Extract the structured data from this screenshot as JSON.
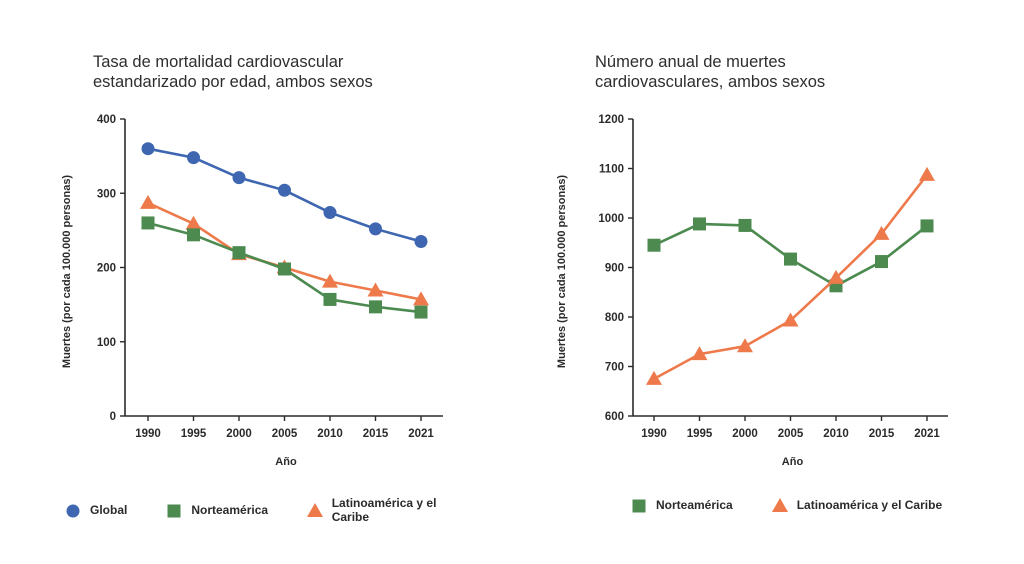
{
  "colors": {
    "global": "#3e66b1",
    "norteamerica": "#4c8a50",
    "latinoamerica": "#ee7a4c",
    "axis": "#2b2b2b"
  },
  "chart_data": [
    {
      "type": "line",
      "title_lines": [
        "Tasa de mortalidad cardiovascular",
        "estandarizado por edad, ambos sexos"
      ],
      "title": "Tasa de mortalidad cardiovascular estandarizado por edad, ambos sexos",
      "xlabel": "Año",
      "ylabel": "Muertes (por cada 100.000 personas)",
      "categories": [
        "1990",
        "1995",
        "2000",
        "2005",
        "2010",
        "2015",
        "2021"
      ],
      "ylim": [
        0,
        400
      ],
      "yticks": [
        0,
        100,
        200,
        300,
        400
      ],
      "series": [
        {
          "name": "Global",
          "key": "global",
          "marker": "circle",
          "values": [
            360,
            348,
            321,
            304,
            274,
            252,
            235
          ]
        },
        {
          "name": "Latinoamérica y el Caribe",
          "key": "latinoamerica",
          "marker": "triangle",
          "values": [
            287,
            259,
            218,
            200,
            181,
            169,
            157
          ]
        },
        {
          "name": "Norteamérica",
          "key": "norteamerica",
          "marker": "square",
          "values": [
            260,
            244,
            220,
            198,
            157,
            147,
            140
          ]
        }
      ],
      "legend": [
        {
          "name": "Global",
          "key": "global",
          "marker": "circle"
        },
        {
          "name": "Norteamérica",
          "key": "norteamerica",
          "marker": "square"
        },
        {
          "name": "Latinoamérica y el Caribe",
          "key": "latinoamerica",
          "marker": "triangle"
        }
      ]
    },
    {
      "type": "line",
      "title_lines": [
        "Número anual de muertes",
        "cardiovasculares, ambos sexos"
      ],
      "title": "Número anual de muertes cardiovasculares, ambos sexos",
      "xlabel": "Año",
      "ylabel": "Muertes (por cada 100.000 personas)",
      "categories": [
        "1990",
        "1995",
        "2000",
        "2005",
        "2010",
        "2015",
        "2021"
      ],
      "ylim": [
        600,
        1200
      ],
      "yticks": [
        600,
        700,
        800,
        900,
        1000,
        1100,
        1200
      ],
      "series": [
        {
          "name": "Norteamérica",
          "key": "norteamerica",
          "marker": "square",
          "values": [
            945,
            988,
            985,
            917,
            863,
            912,
            984
          ]
        },
        {
          "name": "Latinoamérica y el Caribe",
          "key": "latinoamerica",
          "marker": "triangle",
          "values": [
            675,
            725,
            741,
            793,
            879,
            968,
            1087
          ]
        }
      ],
      "legend": [
        {
          "name": "Norteamérica",
          "key": "norteamerica",
          "marker": "square"
        },
        {
          "name": "Latinoamérica y el Caribe",
          "key": "latinoamerica",
          "marker": "triangle"
        }
      ]
    }
  ]
}
